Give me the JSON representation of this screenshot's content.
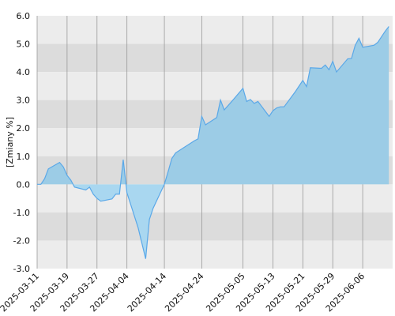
{
  "chart_data": {
    "type": "area",
    "title": "",
    "xlabel": "",
    "ylabel": "[Zmiany %]",
    "ylim": [
      -3.0,
      6.0
    ],
    "y_ticks": [
      "6.0",
      "5.0",
      "4.0",
      "3.0",
      "2.0",
      "1.0",
      "0.0",
      "-1.0",
      "-2.0",
      "-3.0"
    ],
    "x_ticks": [
      "2025-03-11",
      "2025-03-19",
      "2025-03-27",
      "2025-04-04",
      "2025-04-14",
      "2025-04-24",
      "2025-05-05",
      "2025-05-13",
      "2025-05-21",
      "2025-05-29",
      "2025-06-06"
    ],
    "grid": true,
    "colors": {
      "line": "#5aa8e8",
      "fill_positive": "#9ccce6",
      "fill_negative": "#a9d7f0",
      "band_dark": "#dcdcdc",
      "band_light": "#ececec",
      "gridline": "#9a9a9a"
    },
    "series": [
      {
        "x": [
          "2025-03-11",
          "2025-03-12",
          "2025-03-13",
          "2025-03-14",
          "2025-03-17",
          "2025-03-18",
          "2025-03-19",
          "2025-03-20",
          "2025-03-21",
          "2025-03-24",
          "2025-03-25",
          "2025-03-26",
          "2025-03-27",
          "2025-03-28",
          "2025-03-31",
          "2025-04-01",
          "2025-04-02",
          "2025-04-03",
          "2025-04-04",
          "2025-04-07",
          "2025-04-08",
          "2025-04-09",
          "2025-04-10",
          "2025-04-11",
          "2025-04-14",
          "2025-04-15",
          "2025-04-16",
          "2025-04-17",
          "2025-04-22",
          "2025-04-23",
          "2025-04-24",
          "2025-04-25",
          "2025-04-28",
          "2025-04-29",
          "2025-04-30",
          "2025-05-02",
          "2025-05-05",
          "2025-05-06",
          "2025-05-07",
          "2025-05-08",
          "2025-05-09",
          "2025-05-12",
          "2025-05-13",
          "2025-05-14",
          "2025-05-15",
          "2025-05-16",
          "2025-05-19",
          "2025-05-20",
          "2025-05-21",
          "2025-05-22",
          "2025-05-23",
          "2025-05-26",
          "2025-05-27",
          "2025-05-28",
          "2025-05-29",
          "2025-05-30",
          "2025-06-02",
          "2025-06-03",
          "2025-06-04",
          "2025-06-05",
          "2025-06-06",
          "2025-06-09",
          "2025-06-10",
          "2025-06-11",
          "2025-06-12",
          "2025-06-13"
        ],
        "values": [
          0.0,
          0.0,
          0.2,
          0.55,
          0.78,
          0.62,
          0.32,
          0.15,
          -0.1,
          -0.2,
          -0.1,
          -0.35,
          -0.5,
          -0.6,
          -0.52,
          -0.35,
          -0.35,
          0.88,
          -0.3,
          -1.55,
          -2.1,
          -2.65,
          -1.25,
          -0.85,
          0.0,
          0.45,
          0.92,
          1.12,
          1.55,
          1.62,
          2.42,
          2.12,
          2.38,
          3.0,
          2.65,
          2.95,
          3.42,
          2.95,
          3.02,
          2.88,
          2.95,
          2.42,
          2.62,
          2.72,
          2.76,
          2.76,
          3.3,
          3.5,
          3.7,
          3.48,
          4.15,
          4.13,
          4.25,
          4.08,
          4.38,
          4.0,
          4.47,
          4.48,
          4.95,
          5.2,
          4.88,
          4.95,
          5.05,
          5.25,
          5.45,
          5.62
        ]
      }
    ]
  }
}
